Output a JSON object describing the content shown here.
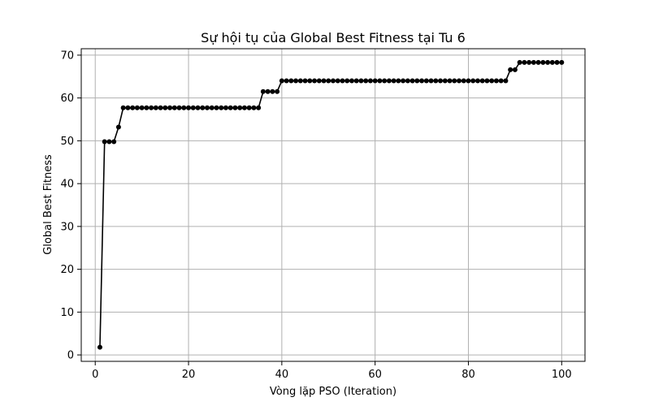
{
  "chart_data": {
    "type": "line",
    "title": "Sự hội tụ của Global Best Fitness tại Tu 6",
    "xlabel": "Vòng lặp PSO (Iteration)",
    "ylabel": "Global Best Fitness",
    "xlim": [
      -3,
      105
    ],
    "ylim": [
      -1.5,
      71.5
    ],
    "xticks": [
      0,
      20,
      40,
      60,
      80,
      100
    ],
    "yticks": [
      0,
      10,
      20,
      30,
      40,
      50,
      60,
      70
    ],
    "grid": true,
    "marker": "circle",
    "color": "#000000",
    "series": [
      {
        "x": [
          1,
          2,
          3,
          4,
          5,
          6,
          7,
          8,
          9,
          10,
          11,
          12,
          13,
          14,
          15,
          16,
          17,
          18,
          19,
          20,
          21,
          22,
          23,
          24,
          25,
          26,
          27,
          28,
          29,
          30,
          31,
          32,
          33,
          34,
          35,
          36,
          37,
          38,
          39,
          40,
          41,
          42,
          43,
          44,
          45,
          46,
          47,
          48,
          49,
          50,
          51,
          52,
          53,
          54,
          55,
          56,
          57,
          58,
          59,
          60,
          61,
          62,
          63,
          64,
          65,
          66,
          67,
          68,
          69,
          70,
          71,
          72,
          73,
          74,
          75,
          76,
          77,
          78,
          79,
          80,
          81,
          82,
          83,
          84,
          85,
          86,
          87,
          88,
          89,
          90,
          91,
          92,
          93,
          94,
          95,
          96,
          97,
          98,
          99,
          100
        ],
        "values": [
          1.8,
          49.8,
          49.8,
          49.8,
          53.2,
          57.7,
          57.7,
          57.7,
          57.7,
          57.7,
          57.7,
          57.7,
          57.7,
          57.7,
          57.7,
          57.7,
          57.7,
          57.7,
          57.7,
          57.7,
          57.7,
          57.7,
          57.7,
          57.7,
          57.7,
          57.7,
          57.7,
          57.7,
          57.7,
          57.7,
          57.7,
          57.7,
          57.7,
          57.7,
          57.7,
          61.5,
          61.5,
          61.5,
          61.5,
          64.0,
          64.0,
          64.0,
          64.0,
          64.0,
          64.0,
          64.0,
          64.0,
          64.0,
          64.0,
          64.0,
          64.0,
          64.0,
          64.0,
          64.0,
          64.0,
          64.0,
          64.0,
          64.0,
          64.0,
          64.0,
          64.0,
          64.0,
          64.0,
          64.0,
          64.0,
          64.0,
          64.0,
          64.0,
          64.0,
          64.0,
          64.0,
          64.0,
          64.0,
          64.0,
          64.0,
          64.0,
          64.0,
          64.0,
          64.0,
          64.0,
          64.0,
          64.0,
          64.0,
          64.0,
          64.0,
          64.0,
          64.0,
          64.0,
          66.6,
          66.6,
          68.3,
          68.3,
          68.3,
          68.3,
          68.3,
          68.3,
          68.3,
          68.3,
          68.3,
          68.3
        ]
      }
    ]
  }
}
